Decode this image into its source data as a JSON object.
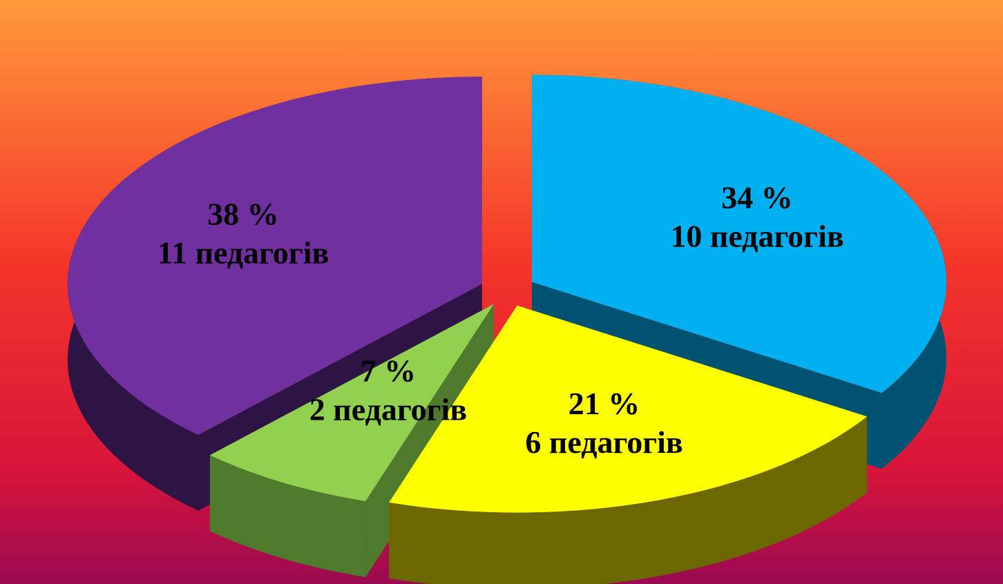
{
  "chart_data": {
    "type": "pie",
    "categories": [
      "34 %",
      "21 %",
      "7 %",
      "38 %"
    ],
    "values": [
      34,
      21,
      7,
      38
    ],
    "value_labels": [
      "34 %",
      "21 %",
      "7 %",
      "38 %"
    ],
    "count_labels": [
      "10 педагогів",
      "6 педагогів",
      "2 педагогів",
      "11 педагогів"
    ],
    "colors": [
      "#00b0f0",
      "#ffff00",
      "#92d050",
      "#7030a0"
    ],
    "side_colors": [
      "#005272",
      "#6b6800",
      "#4f7a2c",
      "#2e1444"
    ]
  }
}
